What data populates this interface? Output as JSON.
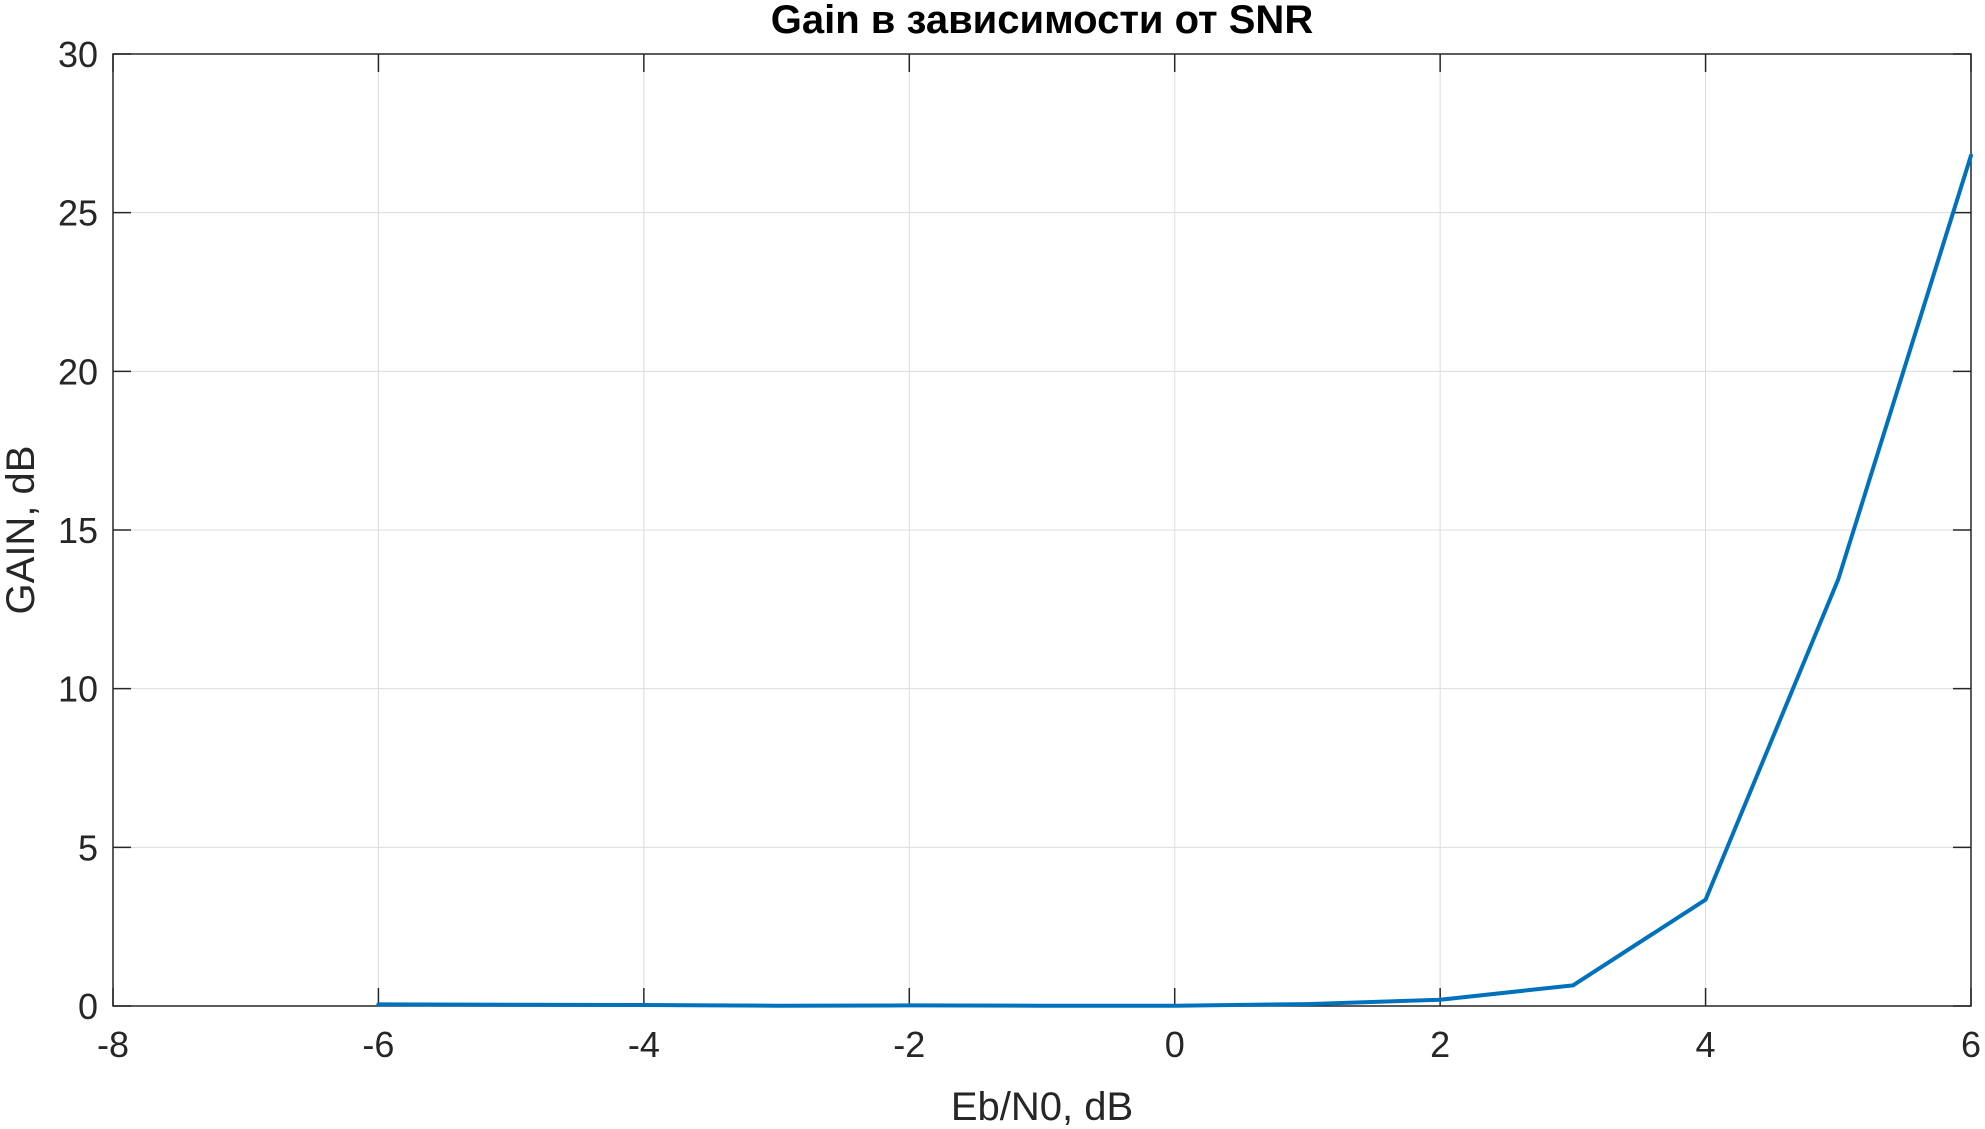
{
  "chart_data": {
    "type": "line",
    "title": "Gain в зависимости от SNR",
    "xlabel": "Eb/N0, dB",
    "ylabel": "GAIN, dB",
    "xlim": [
      -8,
      6
    ],
    "ylim": [
      0,
      30
    ],
    "xticks": [
      -8,
      -6,
      -4,
      -2,
      0,
      2,
      4,
      6
    ],
    "yticks": [
      0,
      5,
      10,
      15,
      20,
      25,
      30
    ],
    "xtick_labels": [
      "-8",
      "-6",
      "-4",
      "-2",
      "0",
      "2",
      "4",
      "6"
    ],
    "ytick_labels": [
      "0",
      "5",
      "10",
      "15",
      "20",
      "25",
      "30"
    ],
    "grid": true,
    "series": [
      {
        "color": "#0072BD",
        "x": [
          -6,
          -5,
          -4,
          -3,
          -2,
          -1,
          0,
          1,
          2,
          3,
          4,
          5,
          6
        ],
        "y": [
          0.05,
          0.04,
          0.03,
          0.01,
          0.02,
          0.01,
          0.01,
          0.06,
          0.2,
          0.65,
          3.35,
          13.45,
          26.8
        ]
      }
    ]
  }
}
